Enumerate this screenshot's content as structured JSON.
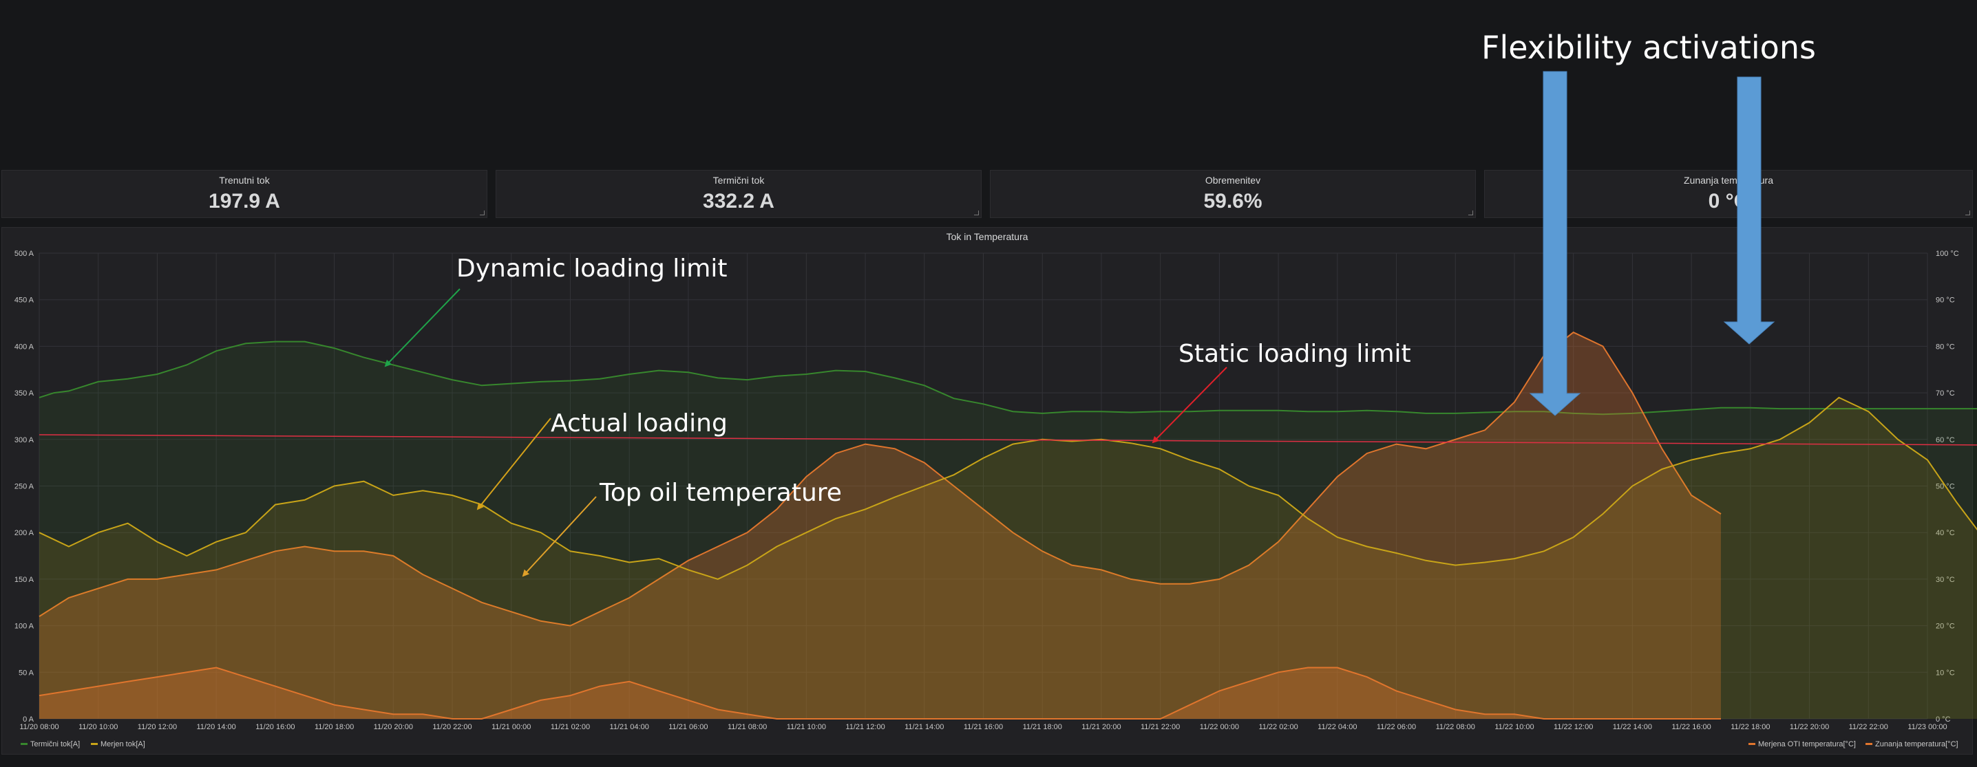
{
  "stats": [
    {
      "title": "Trenutni tok",
      "value": "197.9 A"
    },
    {
      "title": "Termični tok",
      "value": "332.2 A"
    },
    {
      "title": "Obremenitev",
      "value": "59.6%"
    },
    {
      "title": "Zunanja temperatura",
      "value": "0 °C"
    }
  ],
  "panel": {
    "title": "Tok in Temperatura"
  },
  "annotations": {
    "flex": "Flexibility activations",
    "dynamic": "Dynamic loading limit",
    "static": "Static loading limit",
    "actual": "Actual loading",
    "topoil": "Top oil temperature"
  },
  "legend": {
    "thermal": "Termični tok[A]",
    "measured": "Merjen tok[A]",
    "oti": "Merjena OTI temperatura[°C]",
    "ambient": "Zunanja temperatura[°C]"
  },
  "colors": {
    "thermal": "#37872d",
    "measured": "#c8a418",
    "oti": "#e0752d",
    "ambient": "#e0752d",
    "static": "#e02f44",
    "arrow_blue": "#5b9bd5"
  },
  "chart_data": {
    "type": "line",
    "title": "Tok in Temperatura",
    "x_labels": [
      "11/20 08:00",
      "11/20 10:00",
      "11/20 12:00",
      "11/20 14:00",
      "11/20 16:00",
      "11/20 18:00",
      "11/20 20:00",
      "11/20 22:00",
      "11/21 00:00",
      "11/21 02:00",
      "11/21 04:00",
      "11/21 06:00",
      "11/21 08:00",
      "11/21 10:00",
      "11/21 12:00",
      "11/21 14:00",
      "11/21 16:00",
      "11/21 18:00",
      "11/21 20:00",
      "11/21 22:00",
      "11/22 00:00",
      "11/22 02:00",
      "11/22 04:00",
      "11/22 06:00",
      "11/22 08:00",
      "11/22 10:00",
      "11/22 12:00",
      "11/22 14:00",
      "11/22 16:00",
      "11/22 18:00",
      "11/22 20:00",
      "11/22 22:00",
      "11/23 00:00"
    ],
    "y_left": {
      "ticks": [
        "0 A",
        "50 A",
        "100 A",
        "150 A",
        "200 A",
        "250 A",
        "300 A",
        "350 A",
        "400 A",
        "450 A",
        "500 A"
      ],
      "range": [
        0,
        500
      ]
    },
    "y_right": {
      "ticks": [
        "0 °C",
        "10 °C",
        "20 °C",
        "30 °C",
        "40 °C",
        "50 °C",
        "60 °C",
        "70 °C",
        "80 °C",
        "90 °C",
        "100 °C"
      ],
      "range": [
        0,
        100
      ]
    },
    "series": [
      {
        "name": "Termični tok[A]",
        "axis": "left",
        "points": [
          [
            0,
            345
          ],
          [
            0.5,
            350
          ],
          [
            1,
            352
          ],
          [
            2,
            362
          ],
          [
            3,
            365
          ],
          [
            4,
            370
          ],
          [
            5,
            380
          ],
          [
            6,
            395
          ],
          [
            7,
            403
          ],
          [
            8,
            405
          ],
          [
            9,
            405
          ],
          [
            10,
            398
          ],
          [
            11,
            388
          ],
          [
            12,
            380
          ],
          [
            13,
            372
          ],
          [
            14,
            364
          ],
          [
            15,
            358
          ],
          [
            16,
            360
          ],
          [
            17,
            362
          ],
          [
            18,
            363
          ],
          [
            19,
            365
          ],
          [
            20,
            370
          ],
          [
            21,
            374
          ],
          [
            22,
            372
          ],
          [
            23,
            366
          ],
          [
            24,
            364
          ],
          [
            25,
            368
          ],
          [
            26,
            370
          ],
          [
            27,
            374
          ],
          [
            28,
            373
          ],
          [
            29,
            366
          ],
          [
            30,
            358
          ],
          [
            31,
            344
          ],
          [
            32,
            338
          ],
          [
            33,
            330
          ],
          [
            34,
            328
          ],
          [
            35,
            330
          ],
          [
            36,
            330
          ],
          [
            37,
            329
          ],
          [
            38,
            330
          ],
          [
            39,
            330
          ],
          [
            40,
            331
          ],
          [
            41,
            331
          ],
          [
            42,
            331
          ],
          [
            43,
            330
          ],
          [
            44,
            330
          ],
          [
            45,
            331
          ],
          [
            46,
            330
          ],
          [
            47,
            328
          ],
          [
            48,
            328
          ],
          [
            49,
            329
          ],
          [
            50,
            330
          ],
          [
            51,
            330
          ],
          [
            52,
            328
          ],
          [
            53,
            327
          ],
          [
            54,
            328
          ],
          [
            55,
            330
          ],
          [
            56,
            332
          ],
          [
            57,
            334
          ],
          [
            58,
            334
          ],
          [
            59,
            333
          ],
          [
            60,
            333
          ],
          [
            61,
            333
          ],
          [
            62,
            333
          ],
          [
            63,
            333
          ],
          [
            64,
            333
          ],
          [
            65,
            333
          ],
          [
            66,
            333
          ]
        ]
      },
      {
        "name": "Merjen tok[A]",
        "axis": "left",
        "points": [
          [
            0,
            200
          ],
          [
            1,
            185
          ],
          [
            2,
            200
          ],
          [
            3,
            210
          ],
          [
            4,
            190
          ],
          [
            5,
            175
          ],
          [
            6,
            190
          ],
          [
            7,
            200
          ],
          [
            8,
            230
          ],
          [
            9,
            235
          ],
          [
            10,
            250
          ],
          [
            11,
            255
          ],
          [
            12,
            240
          ],
          [
            13,
            245
          ],
          [
            14,
            240
          ],
          [
            15,
            230
          ],
          [
            16,
            210
          ],
          [
            17,
            200
          ],
          [
            18,
            180
          ],
          [
            19,
            175
          ],
          [
            20,
            168
          ],
          [
            21,
            172
          ],
          [
            22,
            160
          ],
          [
            23,
            150
          ],
          [
            24,
            165
          ],
          [
            25,
            185
          ],
          [
            26,
            200
          ],
          [
            27,
            215
          ],
          [
            28,
            225
          ],
          [
            29,
            238
          ],
          [
            30,
            250
          ],
          [
            31,
            262
          ],
          [
            32,
            280
          ],
          [
            33,
            295
          ],
          [
            34,
            300
          ],
          [
            35,
            298
          ],
          [
            36,
            300
          ],
          [
            37,
            296
          ],
          [
            38,
            290
          ],
          [
            39,
            278
          ],
          [
            40,
            268
          ],
          [
            41,
            250
          ],
          [
            42,
            240
          ],
          [
            43,
            215
          ],
          [
            44,
            195
          ],
          [
            45,
            185
          ],
          [
            46,
            178
          ],
          [
            47,
            170
          ],
          [
            48,
            165
          ],
          [
            49,
            168
          ],
          [
            50,
            172
          ],
          [
            51,
            180
          ],
          [
            52,
            195
          ],
          [
            53,
            220
          ],
          [
            54,
            250
          ],
          [
            55,
            268
          ],
          [
            56,
            278
          ],
          [
            57,
            285
          ],
          [
            58,
            290
          ],
          [
            59,
            300
          ],
          [
            60,
            318
          ],
          [
            61,
            345
          ],
          [
            62,
            330
          ],
          [
            63,
            300
          ],
          [
            64,
            278
          ],
          [
            65,
            232
          ],
          [
            66,
            190
          ]
        ]
      },
      {
        "name": "Merjena OTI temperatura[°C]",
        "axis": "right",
        "points": [
          [
            0,
            22
          ],
          [
            1,
            26
          ],
          [
            2,
            28
          ],
          [
            3,
            30
          ],
          [
            4,
            30
          ],
          [
            5,
            31
          ],
          [
            6,
            32
          ],
          [
            7,
            34
          ],
          [
            8,
            36
          ],
          [
            9,
            37
          ],
          [
            10,
            36
          ],
          [
            11,
            36
          ],
          [
            12,
            35
          ],
          [
            13,
            31
          ],
          [
            14,
            28
          ],
          [
            15,
            25
          ],
          [
            16,
            23
          ],
          [
            17,
            21
          ],
          [
            18,
            20
          ],
          [
            19,
            23
          ],
          [
            20,
            26
          ],
          [
            21,
            30
          ],
          [
            22,
            34
          ],
          [
            23,
            37
          ],
          [
            24,
            40
          ],
          [
            25,
            45
          ],
          [
            26,
            52
          ],
          [
            27,
            57
          ],
          [
            28,
            59
          ],
          [
            29,
            58
          ],
          [
            30,
            55
          ],
          [
            31,
            50
          ],
          [
            32,
            45
          ],
          [
            33,
            40
          ],
          [
            34,
            36
          ],
          [
            35,
            33
          ],
          [
            36,
            32
          ],
          [
            37,
            30
          ],
          [
            38,
            29
          ],
          [
            39,
            29
          ],
          [
            40,
            30
          ],
          [
            41,
            33
          ],
          [
            42,
            38
          ],
          [
            43,
            45
          ],
          [
            44,
            52
          ],
          [
            45,
            57
          ],
          [
            46,
            59
          ],
          [
            47,
            58
          ],
          [
            48,
            60
          ],
          [
            49,
            62
          ],
          [
            50,
            68
          ],
          [
            51,
            78
          ],
          [
            52,
            83
          ],
          [
            53,
            80
          ],
          [
            54,
            70
          ],
          [
            55,
            58
          ],
          [
            56,
            48
          ],
          [
            57,
            44
          ]
        ]
      },
      {
        "name": "Zunanja temperatura[°C]",
        "axis": "right",
        "points": [
          [
            0,
            5
          ],
          [
            1,
            6
          ],
          [
            2,
            7
          ],
          [
            3,
            8
          ],
          [
            4,
            9
          ],
          [
            5,
            10
          ],
          [
            6,
            11
          ],
          [
            7,
            9
          ],
          [
            8,
            7
          ],
          [
            9,
            5
          ],
          [
            10,
            3
          ],
          [
            11,
            2
          ],
          [
            12,
            1
          ],
          [
            13,
            1
          ],
          [
            14,
            0
          ],
          [
            15,
            0
          ],
          [
            16,
            2
          ],
          [
            17,
            4
          ],
          [
            18,
            5
          ],
          [
            19,
            7
          ],
          [
            20,
            8
          ],
          [
            21,
            6
          ],
          [
            22,
            4
          ],
          [
            23,
            2
          ],
          [
            24,
            1
          ],
          [
            25,
            0
          ],
          [
            26,
            0
          ],
          [
            27,
            0
          ],
          [
            28,
            0
          ],
          [
            29,
            0
          ],
          [
            30,
            0
          ],
          [
            31,
            0
          ],
          [
            32,
            0
          ],
          [
            33,
            0
          ],
          [
            34,
            0
          ],
          [
            35,
            0
          ],
          [
            36,
            0
          ],
          [
            37,
            0
          ],
          [
            38,
            0
          ],
          [
            39,
            3
          ],
          [
            40,
            6
          ],
          [
            41,
            8
          ],
          [
            42,
            10
          ],
          [
            43,
            11
          ],
          [
            44,
            11
          ],
          [
            45,
            9
          ],
          [
            46,
            6
          ],
          [
            47,
            4
          ],
          [
            48,
            2
          ],
          [
            49,
            1
          ],
          [
            50,
            1
          ],
          [
            51,
            0
          ],
          [
            52,
            0
          ],
          [
            53,
            0
          ],
          [
            54,
            0
          ],
          [
            55,
            0
          ],
          [
            56,
            0
          ],
          [
            57,
            0
          ]
        ]
      },
      {
        "name": "Static loading limit",
        "axis": "left",
        "points": [
          [
            0,
            305
          ],
          [
            66,
            294
          ]
        ]
      }
    ],
    "grid": true
  }
}
